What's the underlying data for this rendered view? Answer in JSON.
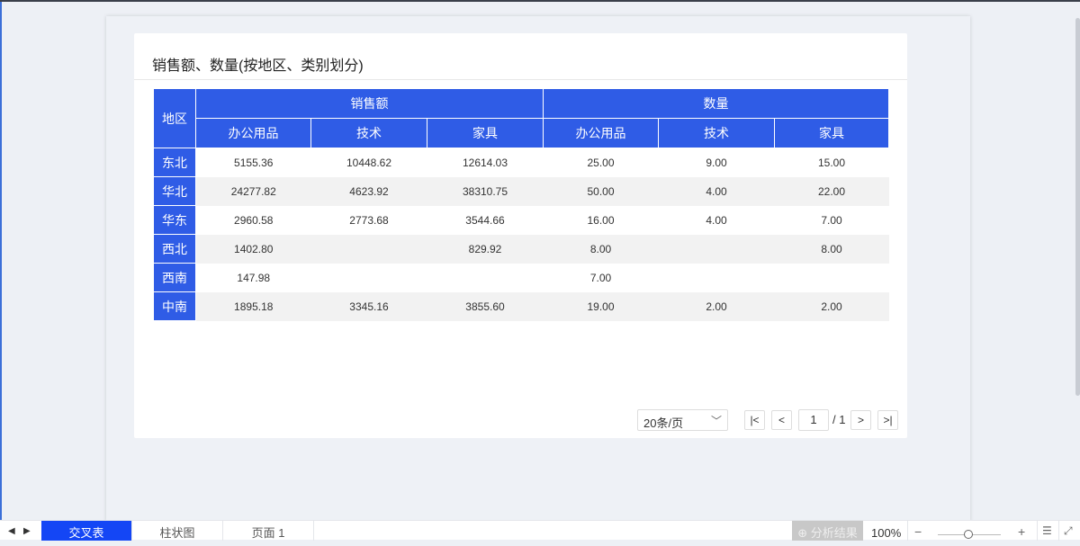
{
  "report": {
    "title": "销售额、数量(按地区、类别划分)"
  },
  "table": {
    "corner": "地区",
    "groups": [
      "销售额",
      "数量"
    ],
    "subheaders": [
      "办公用品",
      "技术",
      "家具",
      "办公用品",
      "技术",
      "家具"
    ],
    "rows": [
      {
        "region": "东北",
        "values": [
          "5155.36",
          "10448.62",
          "12614.03",
          "25.00",
          "9.00",
          "15.00"
        ]
      },
      {
        "region": "华北",
        "values": [
          "24277.82",
          "4623.92",
          "38310.75",
          "50.00",
          "4.00",
          "22.00"
        ]
      },
      {
        "region": "华东",
        "values": [
          "2960.58",
          "2773.68",
          "3544.66",
          "16.00",
          "4.00",
          "7.00"
        ]
      },
      {
        "region": "西北",
        "values": [
          "1402.80",
          "",
          "829.92",
          "8.00",
          "",
          "8.00"
        ]
      },
      {
        "region": "西南",
        "values": [
          "147.98",
          "",
          "",
          "7.00",
          "",
          ""
        ]
      },
      {
        "region": "中南",
        "values": [
          "1895.18",
          "3345.16",
          "3855.60",
          "19.00",
          "2.00",
          "2.00"
        ]
      }
    ]
  },
  "pager": {
    "page_size": "20条/页",
    "first": "|<",
    "prev": "<",
    "current": "1",
    "total": "/ 1",
    "next": ">",
    "last": ">|"
  },
  "bottom": {
    "tabs": [
      "交叉表",
      "柱状图",
      "页面 1"
    ],
    "analysis": "分析结果",
    "zoom": "100%",
    "minus": "−",
    "plus": "+"
  },
  "colors": {
    "header": "#2f5ce6",
    "active_tab": "#1446f5"
  }
}
